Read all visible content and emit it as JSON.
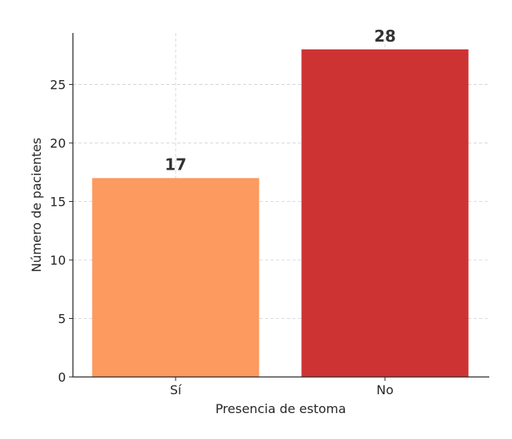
{
  "chart_data": {
    "type": "bar",
    "categories": [
      "Sí",
      "No"
    ],
    "values": [
      17,
      28
    ],
    "colors": [
      "#fc9a5f",
      "#ce3334"
    ],
    "xlabel": "Presencia de estoma",
    "ylabel": "Número de pacientes",
    "ylim": [
      0,
      29.4
    ],
    "yticks": [
      0,
      5,
      10,
      15,
      20,
      25
    ],
    "grid": true,
    "data_labels": [
      "17",
      "28"
    ]
  }
}
